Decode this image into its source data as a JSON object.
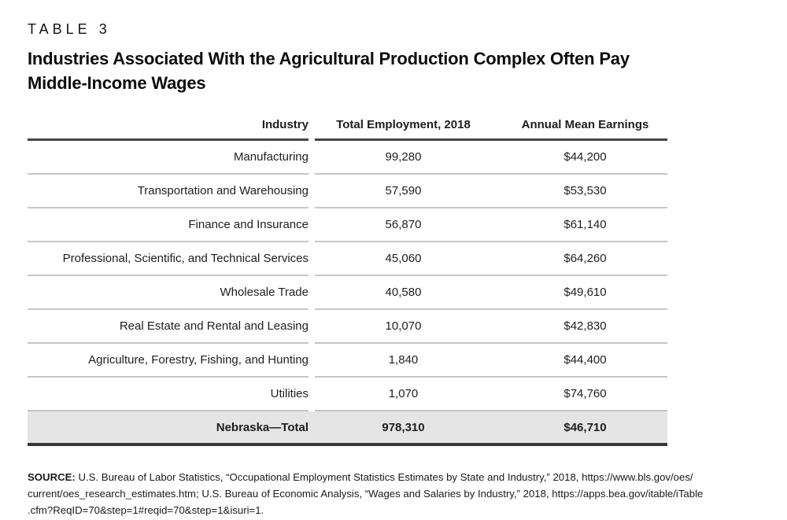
{
  "label": "TABLE 3",
  "title": {
    "line1": "Industries Associated With the Agricultural Production Complex Often Pay",
    "line2": "Middle-Income Wages"
  },
  "table": {
    "columns": [
      "Industry",
      "Total Employment, 2018",
      "Annual Mean Earnings"
    ],
    "rows": [
      {
        "industry": "Manufacturing",
        "employment": "99,280",
        "earnings": "$44,200"
      },
      {
        "industry": "Transportation and Warehousing",
        "employment": "57,590",
        "earnings": "$53,530"
      },
      {
        "industry": "Finance and Insurance",
        "employment": "56,870",
        "earnings": "$61,140"
      },
      {
        "industry": "Professional, Scientific, and Technical Services",
        "employment": "45,060",
        "earnings": "$64,260"
      },
      {
        "industry": "Wholesale Trade",
        "employment": "40,580",
        "earnings": "$49,610"
      },
      {
        "industry": "Real Estate and Rental and Leasing",
        "employment": "10,070",
        "earnings": "$42,830"
      },
      {
        "industry": "Agriculture, Forestry, Fishing, and Hunting",
        "employment": "1,840",
        "earnings": "$44,400"
      },
      {
        "industry": "Utilities",
        "employment": "1,070",
        "earnings": "$74,760"
      }
    ],
    "total": {
      "industry": "Nebraska—Total",
      "employment": "978,310",
      "earnings": "$46,710"
    }
  },
  "source": {
    "label": "SOURCE:",
    "lines": [
      "U.S. Bureau of Labor Statistics, “Occupational Employment Statistics Estimates by State and Industry,” 2018, https://www.bls.gov/oes/",
      "current/oes_research_estimates.htm; U.S. Bureau of Economic Analysis, “Wages and Salaries by Industry,” 2018, https://apps.bea.gov/itable/iTable",
      ".cfm?ReqID=70&step=1#reqid=70&step=1&isuri=1."
    ]
  },
  "colors": {
    "ink": "#1e1e1e",
    "rule_light": "#c6c6c6",
    "rule_dark": "#454545",
    "total_row_bg": "#e5e5e6"
  }
}
